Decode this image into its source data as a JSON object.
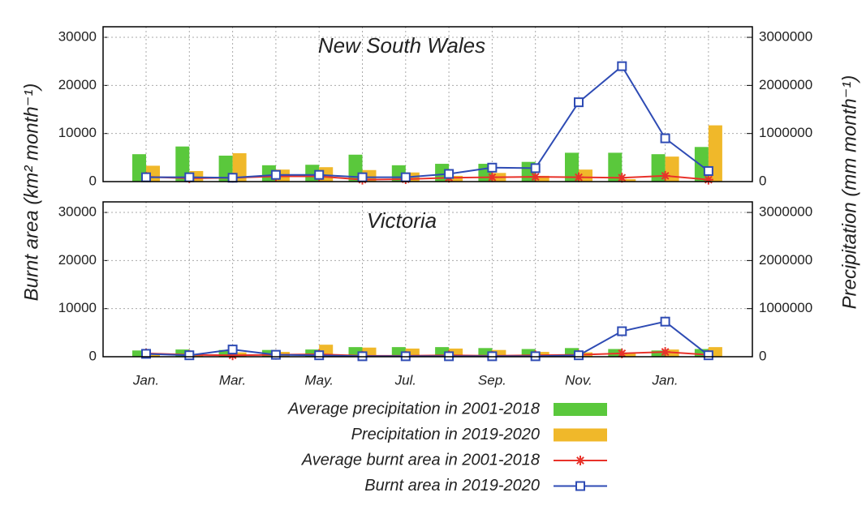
{
  "chart_data": [
    {
      "type": "combo",
      "title": "New South Wales",
      "y_label": "Burnt area (km² month⁻¹)",
      "y2_label": "Precipitation (mm month⁻¹)",
      "categories": [
        null,
        null,
        null,
        null,
        null,
        null,
        null,
        null,
        null,
        null,
        null,
        null,
        null,
        null
      ],
      "ylim": [
        0,
        32200
      ],
      "yticks": [
        0,
        10000,
        20000,
        30000
      ],
      "y2lim": [
        0,
        3220000
      ],
      "y2ticks": [
        0,
        1000000,
        2000000,
        3000000
      ],
      "grid": true,
      "series": [
        {
          "name": "Average precipitation in 2001-2018",
          "type": "bar",
          "axis": "y2",
          "color": "#5ac83c",
          "values": [
            570000,
            730000,
            540000,
            340000,
            350000,
            560000,
            340000,
            370000,
            370000,
            410000,
            600000,
            600000,
            570000,
            720000
          ]
        },
        {
          "name": "Precipitation in 2019-2020",
          "type": "bar",
          "axis": "y2",
          "color": "#f0b82a",
          "values": [
            330000,
            220000,
            590000,
            250000,
            300000,
            240000,
            190000,
            120000,
            180000,
            120000,
            250000,
            50000,
            520000,
            1170000
          ]
        },
        {
          "name": "Average burnt area in 2001-2018",
          "type": "line",
          "marker": "star",
          "color": "#e8322a",
          "values": [
            1000,
            700,
            800,
            1100,
            1100,
            400,
            500,
            800,
            900,
            1000,
            900,
            800,
            1200,
            400
          ]
        },
        {
          "name": "Burnt area in 2019-2020",
          "type": "line",
          "marker": "square",
          "color": "#2e4bb4",
          "values": [
            900,
            900,
            800,
            1400,
            1400,
            900,
            900,
            1600,
            2900,
            2800,
            16500,
            24000,
            9000,
            2200
          ]
        }
      ]
    },
    {
      "type": "combo",
      "title": "Victoria",
      "categories": [
        "Jan.",
        null,
        "Mar.",
        null,
        "May.",
        null,
        "Jul.",
        null,
        "Sep.",
        null,
        "Nov.",
        null,
        "Jan.",
        null
      ],
      "ylim": [
        0,
        32200
      ],
      "yticks": [
        0,
        10000,
        20000,
        30000
      ],
      "y2lim": [
        0,
        3220000
      ],
      "y2ticks": [
        0,
        1000000,
        2000000,
        3000000
      ],
      "grid": true,
      "series": [
        {
          "type": "bar",
          "axis": "y2",
          "color": "#5ac83c",
          "values": [
            130000,
            150000,
            140000,
            140000,
            150000,
            200000,
            200000,
            200000,
            180000,
            160000,
            180000,
            160000,
            130000,
            160000
          ]
        },
        {
          "type": "bar",
          "axis": "y2",
          "color": "#f0b82a",
          "values": [
            60000,
            30000,
            90000,
            100000,
            250000,
            190000,
            170000,
            170000,
            140000,
            100000,
            90000,
            80000,
            150000,
            200000
          ]
        },
        {
          "type": "line",
          "marker": "star",
          "color": "#e8322a",
          "values": [
            700,
            400,
            300,
            400,
            500,
            200,
            200,
            300,
            200,
            300,
            400,
            700,
            1000,
            400
          ]
        },
        {
          "type": "line",
          "marker": "square",
          "color": "#2e4bb4",
          "values": [
            600,
            300,
            1500,
            400,
            300,
            100,
            100,
            100,
            100,
            100,
            300,
            5300,
            7300,
            300
          ]
        }
      ]
    }
  ]
}
